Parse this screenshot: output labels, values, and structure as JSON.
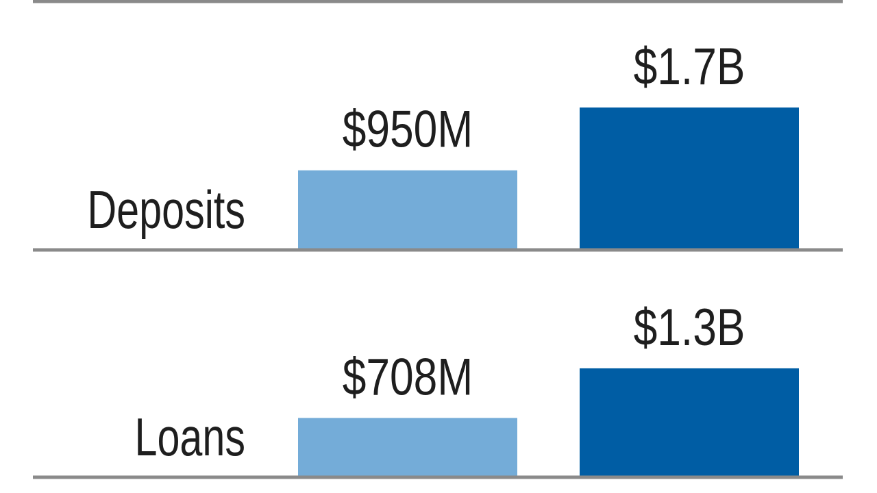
{
  "chart_data": {
    "type": "bar",
    "orientation": "vertical",
    "layout": "grouped-panels",
    "title": "",
    "grid": false,
    "legend": "none",
    "colors": {
      "series_1": "#74acd8",
      "series_2": "#005da4",
      "rule": "#8a8a8a",
      "text": "#1e1e1e"
    },
    "groups": [
      {
        "category": "Deposits",
        "bars": [
          {
            "value": 950000000,
            "label": "$950M"
          },
          {
            "value": 1700000000,
            "label": "$1.7B"
          }
        ]
      },
      {
        "category": "Loans",
        "bars": [
          {
            "value": 708000000,
            "label": "$708M"
          },
          {
            "value": 1300000000,
            "label": "$1.3B"
          }
        ]
      }
    ]
  }
}
